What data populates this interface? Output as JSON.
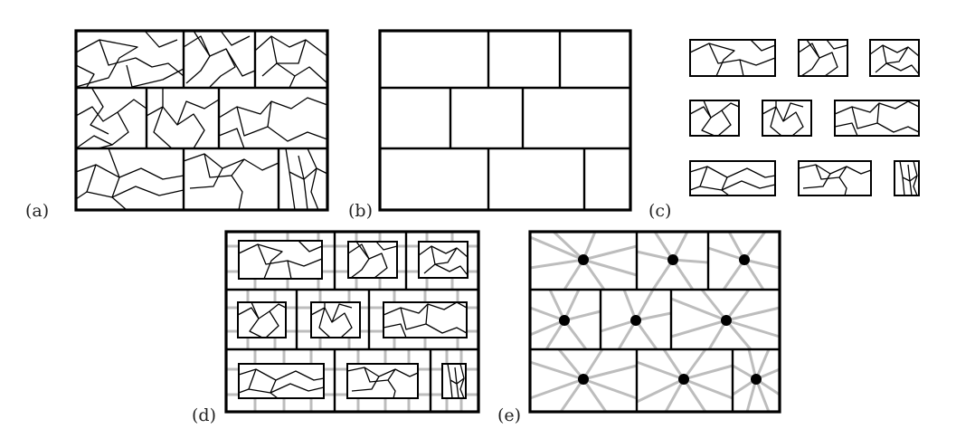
{
  "figure": {
    "panels": [
      {
        "id": "a",
        "label": "(a)"
      },
      {
        "id": "b",
        "label": "(b)"
      },
      {
        "id": "c",
        "label": "(c)"
      },
      {
        "id": "d",
        "label": "(d)"
      },
      {
        "id": "e",
        "label": "(e)"
      }
    ]
  }
}
